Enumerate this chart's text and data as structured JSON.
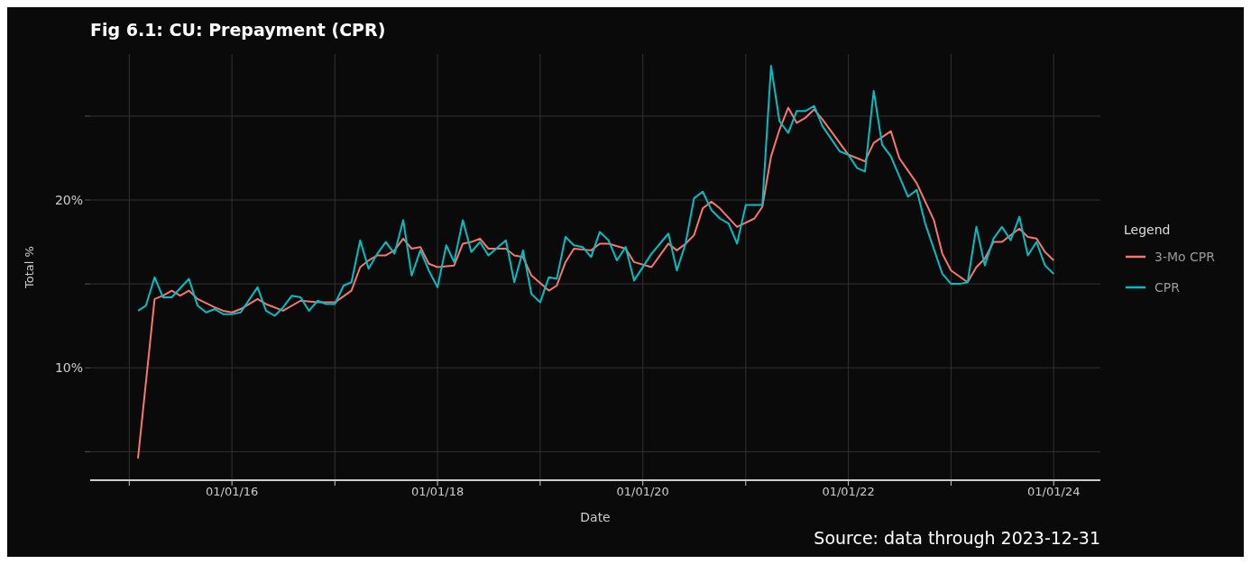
{
  "chart_data": {
    "type": "line",
    "title": "Fig 6.1: CU: Prepayment (CPR)",
    "xlabel": "Date",
    "ylabel": "Total %",
    "legend_title": "Legend",
    "legend": "right",
    "grid": true,
    "annotations": [
      "Source: data through 2023-12-31"
    ],
    "xlim": [
      "2014-08-15",
      "2024-06-15"
    ],
    "xticks": [
      {
        "value": "2015-01-01",
        "label": null
      },
      {
        "value": "2016-01-01",
        "label": "01/01/16"
      },
      {
        "value": "2017-01-01",
        "label": null
      },
      {
        "value": "2018-01-01",
        "label": "01/01/18"
      },
      {
        "value": "2019-01-01",
        "label": null
      },
      {
        "value": "2020-01-01",
        "label": "01/01/20"
      },
      {
        "value": "2021-01-01",
        "label": null
      },
      {
        "value": "2022-01-01",
        "label": "01/01/22"
      },
      {
        "value": "2023-01-01",
        "label": null
      },
      {
        "value": "2024-01-01",
        "label": "01/01/24"
      }
    ],
    "ylim": [
      3.3,
      28.7
    ],
    "yticks": [
      {
        "value": 5,
        "label": null
      },
      {
        "value": 10,
        "label": "10%"
      },
      {
        "value": 15,
        "label": null
      },
      {
        "value": 20,
        "label": "20%"
      },
      {
        "value": 25,
        "label": null
      }
    ],
    "series": [
      {
        "name": "3-Mo CPR",
        "color": "#f8766d",
        "x": [
          "2015-02",
          "2015-04",
          "2015-05",
          "2015-06",
          "2015-07",
          "2015-08",
          "2015-09",
          "2015-11",
          "2015-12",
          "2016-01",
          "2016-02",
          "2016-04",
          "2016-05",
          "2016-07",
          "2016-09",
          "2016-11",
          "2016-12",
          "2017-01",
          "2017-03",
          "2017-04",
          "2017-05",
          "2017-06",
          "2017-07",
          "2017-08",
          "2017-09",
          "2017-10",
          "2017-11",
          "2017-12",
          "2018-01",
          "2018-03",
          "2018-04",
          "2018-05",
          "2018-06",
          "2018-07",
          "2018-09",
          "2018-10",
          "2018-11",
          "2018-12",
          "2019-02",
          "2019-03",
          "2019-04",
          "2019-05",
          "2019-07",
          "2019-08",
          "2019-09",
          "2019-11",
          "2019-12",
          "2020-02",
          "2020-04",
          "2020-05",
          "2020-06",
          "2020-07",
          "2020-08",
          "2020-09",
          "2020-10",
          "2020-12",
          "2021-02",
          "2021-03",
          "2021-04",
          "2021-05",
          "2021-06",
          "2021-07",
          "2021-08",
          "2021-09",
          "2021-10",
          "2021-12",
          "2022-01",
          "2022-02",
          "2022-03",
          "2022-04",
          "2022-06",
          "2022-07",
          "2022-09",
          "2022-11",
          "2022-12",
          "2023-01",
          "2023-03",
          "2023-04",
          "2023-05",
          "2023-06",
          "2023-07",
          "2023-09",
          "2023-10",
          "2023-11",
          "2023-12",
          "2024-01"
        ],
        "values": [
          4.6,
          14.1,
          14.3,
          14.6,
          14.3,
          14.6,
          14.1,
          13.6,
          13.4,
          13.3,
          13.5,
          14.1,
          13.8,
          13.4,
          14.0,
          13.9,
          13.9,
          13.9,
          14.6,
          16.0,
          16.4,
          16.7,
          16.7,
          17.0,
          17.7,
          17.1,
          17.2,
          16.2,
          16.0,
          16.1,
          17.4,
          17.5,
          17.7,
          17.1,
          17.1,
          16.7,
          16.6,
          15.5,
          14.6,
          14.9,
          16.3,
          17.1,
          17.0,
          17.4,
          17.4,
          17.1,
          16.3,
          16.0,
          17.4,
          17.0,
          17.4,
          17.9,
          19.5,
          19.9,
          19.5,
          18.4,
          18.9,
          19.6,
          22.6,
          24.2,
          25.5,
          24.6,
          24.9,
          25.4,
          24.8,
          23.4,
          22.7,
          22.5,
          22.3,
          23.4,
          24.1,
          22.5,
          21.0,
          18.8,
          16.8,
          15.8,
          15.1,
          16.0,
          16.5,
          17.5,
          17.5,
          18.3,
          17.8,
          17.7,
          16.9,
          16.4
        ]
      },
      {
        "name": "CPR",
        "color": "#00bfc4",
        "x": [
          "2015-02",
          "2015-03",
          "2015-04",
          "2015-05",
          "2015-06",
          "2015-08",
          "2015-09",
          "2015-10",
          "2015-11",
          "2015-12",
          "2016-01",
          "2016-02",
          "2016-04",
          "2016-05",
          "2016-06",
          "2016-07",
          "2016-08",
          "2016-09",
          "2016-10",
          "2016-11",
          "2016-12",
          "2017-01",
          "2017-02",
          "2017-03",
          "2017-04",
          "2017-05",
          "2017-06",
          "2017-07",
          "2017-08",
          "2017-09",
          "2017-10",
          "2017-11",
          "2017-12",
          "2018-01",
          "2018-02",
          "2018-03",
          "2018-04",
          "2018-05",
          "2018-06",
          "2018-07",
          "2018-09",
          "2018-10",
          "2018-11",
          "2018-12",
          "2019-01",
          "2019-02",
          "2019-03",
          "2019-04",
          "2019-05",
          "2019-06",
          "2019-07",
          "2019-08",
          "2019-09",
          "2019-10",
          "2019-11",
          "2019-12",
          "2020-02",
          "2020-04",
          "2020-05",
          "2020-06",
          "2020-07",
          "2020-08",
          "2020-09",
          "2020-10",
          "2020-11",
          "2020-12",
          "2021-01",
          "2021-03",
          "2021-04",
          "2021-05",
          "2021-06",
          "2021-07",
          "2021-08",
          "2021-09",
          "2021-10",
          "2021-12",
          "2022-01",
          "2022-02",
          "2022-03",
          "2022-04",
          "2022-05",
          "2022-06",
          "2022-08",
          "2022-09",
          "2022-10",
          "2022-12",
          "2023-01",
          "2023-02",
          "2023-03",
          "2023-04",
          "2023-05",
          "2023-06",
          "2023-07",
          "2023-08",
          "2023-09",
          "2023-10",
          "2023-11",
          "2023-12",
          "2024-01"
        ],
        "values": [
          13.4,
          13.7,
          15.4,
          14.2,
          14.2,
          15.3,
          13.7,
          13.3,
          13.5,
          13.2,
          13.2,
          13.3,
          14.8,
          13.4,
          13.1,
          13.6,
          14.3,
          14.2,
          13.4,
          14.0,
          13.8,
          13.8,
          14.9,
          15.1,
          17.6,
          15.9,
          16.8,
          17.5,
          16.8,
          18.8,
          15.5,
          17.0,
          15.8,
          14.8,
          17.3,
          16.3,
          18.8,
          16.9,
          17.5,
          16.7,
          17.6,
          15.1,
          17.0,
          14.4,
          13.9,
          15.4,
          15.3,
          17.8,
          17.3,
          17.2,
          16.6,
          18.1,
          17.6,
          16.4,
          17.2,
          15.2,
          16.8,
          18.0,
          15.8,
          17.4,
          20.1,
          20.5,
          19.4,
          18.9,
          18.6,
          17.4,
          19.7,
          19.7,
          28.0,
          24.7,
          24.0,
          25.3,
          25.3,
          25.6,
          24.4,
          22.9,
          22.7,
          21.9,
          21.7,
          26.5,
          23.3,
          22.6,
          20.2,
          20.6,
          18.6,
          15.6,
          15.0,
          15.0,
          15.1,
          18.4,
          16.1,
          17.7,
          18.4,
          17.6,
          19.0,
          16.7,
          17.5,
          16.1,
          15.6
        ]
      }
    ]
  }
}
